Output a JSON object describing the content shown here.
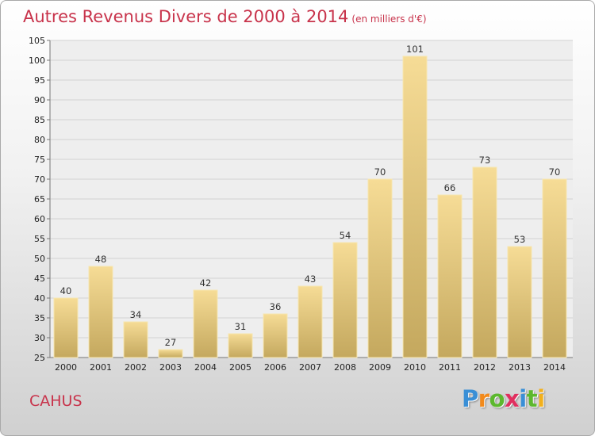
{
  "chart_data": {
    "type": "bar",
    "title": "Autres Revenus Divers de 2000 à 2014",
    "subtitle": "(en milliers d'€)",
    "categories": [
      "2000",
      "2001",
      "2002",
      "2003",
      "2004",
      "2005",
      "2006",
      "2007",
      "2008",
      "2009",
      "2010",
      "2011",
      "2012",
      "2013",
      "2014"
    ],
    "values": [
      40,
      48,
      34,
      27,
      42,
      31,
      36,
      43,
      54,
      70,
      101,
      66,
      73,
      53,
      70
    ],
    "xlabel": "",
    "ylabel": "",
    "ylim": [
      25,
      105
    ],
    "yticks": [
      25,
      30,
      35,
      40,
      45,
      50,
      55,
      60,
      65,
      70,
      75,
      80,
      85,
      90,
      95,
      100,
      105
    ],
    "grid": true,
    "bar_color": "#e8c878"
  },
  "footer": {
    "commune": "CAHUS"
  },
  "logo": {
    "letters": [
      "P",
      "r",
      "o",
      "x",
      "i",
      "t",
      "i"
    ],
    "colors": [
      "#3a8fd6",
      "#f28a1c",
      "#5cb82e",
      "#e02f5f",
      "#3a8fd6",
      "#5cb82e",
      "#f2b01c"
    ]
  }
}
